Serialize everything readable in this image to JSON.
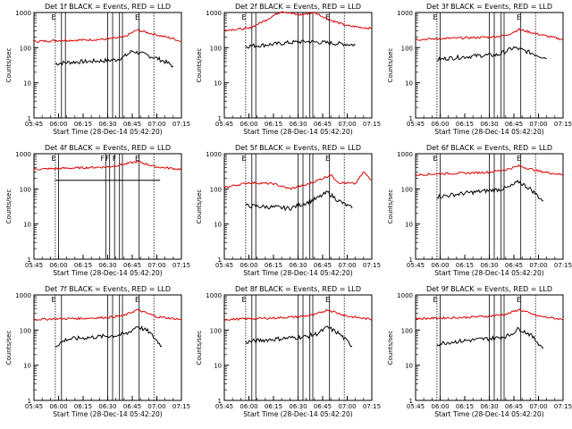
{
  "colors": {
    "events": "#000000",
    "lld": "#dd0000",
    "axis": "#000000",
    "background": "#ffffff"
  },
  "chart_data": [
    {
      "type": "line",
      "title": "Det 1f  BLACK = Events, RED = LLD",
      "ylabel": "Counts/sec",
      "xlabel": "Start Time (28-Dec-14 05:42:20)",
      "x_ticks": [
        "05:45",
        "06:00",
        "06:15",
        "06:30",
        "06:45",
        "07:00",
        "07:15"
      ],
      "y_ticks": [
        "1",
        "10",
        "100",
        "1000"
      ],
      "ylim": [
        1,
        1000
      ],
      "y_scale": "log",
      "flags": [
        "E",
        "E"
      ],
      "legend": "in title",
      "grid": false,
      "series": [
        {
          "name": "Events",
          "color": "#000000",
          "x": [
            "05:58",
            "06:05",
            "06:15",
            "06:25",
            "06:35",
            "06:40",
            "06:45",
            "06:52",
            "07:00",
            "07:05",
            "07:10"
          ],
          "values": [
            35,
            38,
            40,
            42,
            45,
            55,
            80,
            65,
            50,
            40,
            30
          ]
        },
        {
          "name": "LLD",
          "color": "#dd0000",
          "x": [
            "05:45",
            "06:00",
            "06:15",
            "06:30",
            "06:40",
            "06:48",
            "07:00",
            "07:10",
            "07:15"
          ],
          "values": [
            150,
            160,
            165,
            175,
            200,
            320,
            230,
            180,
            150
          ]
        }
      ]
    },
    {
      "type": "line",
      "title": "Det 2f  BLACK = Events, RED = LLD",
      "ylabel": "Counts/sec",
      "xlabel": "Start Time (28-Dec-14 05:42:20)",
      "x_ticks": [
        "05:45",
        "06:00",
        "06:15",
        "06:30",
        "06:45",
        "07:00",
        "07:15"
      ],
      "y_ticks": [
        "1",
        "10",
        "100",
        "1000"
      ],
      "ylim": [
        1,
        1000
      ],
      "y_scale": "log",
      "flags": [
        "E",
        "E"
      ],
      "legend": "in title",
      "grid": false,
      "series": [
        {
          "name": "Events",
          "color": "#000000",
          "x": [
            "05:58",
            "06:05",
            "06:15",
            "06:25",
            "06:35",
            "06:45",
            "06:55",
            "07:05"
          ],
          "values": [
            110,
            115,
            125,
            140,
            150,
            140,
            130,
            120
          ]
        },
        {
          "name": "LLD",
          "color": "#dd0000",
          "x": [
            "05:45",
            "06:00",
            "06:10",
            "06:20",
            "06:30",
            "06:40",
            "06:50",
            "07:00",
            "07:15"
          ],
          "values": [
            320,
            350,
            600,
            1100,
            850,
            1000,
            600,
            420,
            350
          ]
        }
      ]
    },
    {
      "type": "line",
      "title": "Det 3f  BLACK = Events, RED = LLD",
      "ylabel": "Counts/sec",
      "xlabel": "Start Time (28-Dec-14 05:42:20)",
      "x_ticks": [
        "05:45",
        "06:00",
        "06:15",
        "06:30",
        "06:45",
        "07:00",
        "07:15"
      ],
      "y_ticks": [
        "1",
        "10",
        "100",
        "1000"
      ],
      "ylim": [
        1,
        1000
      ],
      "y_scale": "log",
      "flags": [
        "E",
        "E"
      ],
      "legend": "in title",
      "grid": false,
      "series": [
        {
          "name": "Events",
          "color": "#000000",
          "x": [
            "05:58",
            "06:05",
            "06:15",
            "06:25",
            "06:35",
            "06:45",
            "06:52",
            "07:00",
            "07:05"
          ],
          "values": [
            45,
            50,
            55,
            60,
            62,
            100,
            80,
            60,
            50
          ]
        },
        {
          "name": "LLD",
          "color": "#dd0000",
          "x": [
            "05:45",
            "06:00",
            "06:15",
            "06:30",
            "06:40",
            "06:48",
            "07:00",
            "07:15"
          ],
          "values": [
            170,
            180,
            190,
            200,
            220,
            330,
            240,
            170
          ]
        }
      ]
    },
    {
      "type": "line",
      "title": "Det 4f  BLACK = Events, RED = LLD",
      "ylabel": "Counts/sec",
      "xlabel": "Start Time (28-Dec-14 05:42:20)",
      "x_ticks": [
        "05:45",
        "06:00",
        "06:15",
        "06:30",
        "06:45",
        "07:00",
        "07:15"
      ],
      "y_ticks": [
        "1",
        "10",
        "100",
        "1000"
      ],
      "ylim": [
        1,
        1000
      ],
      "y_scale": "log",
      "flags": [
        "E",
        "F",
        "F",
        "F",
        "E"
      ],
      "legend": "in title",
      "grid": false,
      "series": [
        {
          "name": "Events",
          "color": "#000000",
          "x": [
            "05:58",
            "06:15",
            "06:30",
            "06:45",
            "07:00",
            "07:02"
          ],
          "values": [
            175,
            175,
            175,
            175,
            175,
            175
          ]
        },
        {
          "name": "LLD",
          "color": "#dd0000",
          "x": [
            "05:45",
            "06:00",
            "06:15",
            "06:30",
            "06:40",
            "06:48",
            "07:00",
            "07:15"
          ],
          "values": [
            360,
            380,
            400,
            420,
            500,
            600,
            420,
            360
          ]
        }
      ]
    },
    {
      "type": "line",
      "title": "Det 5f  BLACK = Events, RED = LLD",
      "ylabel": "Counts/sec",
      "xlabel": "Start Time (28-Dec-14 05:42:20)",
      "x_ticks": [
        "05:45",
        "06:00",
        "06:15",
        "06:30",
        "06:45",
        "07:00",
        "07:15"
      ],
      "y_ticks": [
        "1",
        "10",
        "100",
        "1000"
      ],
      "ylim": [
        1,
        1000
      ],
      "y_scale": "log",
      "flags": [
        "E",
        "E"
      ],
      "legend": "in title",
      "grid": false,
      "series": [
        {
          "name": "Events",
          "color": "#000000",
          "x": [
            "05:58",
            "06:05",
            "06:15",
            "06:25",
            "06:35",
            "06:42",
            "06:48",
            "06:55",
            "07:03"
          ],
          "values": [
            33,
            32,
            30,
            28,
            40,
            55,
            80,
            45,
            28
          ]
        },
        {
          "name": "LLD",
          "color": "#dd0000",
          "x": [
            "05:45",
            "06:00",
            "06:15",
            "06:25",
            "06:35",
            "06:45",
            "06:50",
            "06:55",
            "07:05",
            "07:10",
            "07:15"
          ],
          "values": [
            110,
            150,
            140,
            100,
            130,
            200,
            250,
            150,
            140,
            300,
            180
          ]
        }
      ]
    },
    {
      "type": "line",
      "title": "Det 6f  BLACK = Events, RED = LLD",
      "ylabel": "Counts/sec",
      "xlabel": "Start Time (28-Dec-14 05:42:20)",
      "x_ticks": [
        "05:45",
        "06:00",
        "06:15",
        "06:30",
        "06:45",
        "07:00",
        "07:15"
      ],
      "y_ticks": [
        "1",
        "10",
        "100",
        "1000"
      ],
      "ylim": [
        1,
        1000
      ],
      "y_scale": "log",
      "flags": [
        "E",
        "E"
      ],
      "legend": "in title",
      "grid": false,
      "series": [
        {
          "name": "Events",
          "color": "#000000",
          "x": [
            "05:58",
            "06:05",
            "06:15",
            "06:25",
            "06:35",
            "06:42",
            "06:48",
            "06:55",
            "07:03"
          ],
          "values": [
            60,
            65,
            75,
            85,
            95,
            110,
            160,
            100,
            45
          ]
        },
        {
          "name": "LLD",
          "color": "#dd0000",
          "x": [
            "05:45",
            "06:00",
            "06:15",
            "06:30",
            "06:40",
            "06:48",
            "07:00",
            "07:15"
          ],
          "values": [
            250,
            270,
            280,
            300,
            350,
            450,
            320,
            250
          ]
        }
      ]
    },
    {
      "type": "line",
      "title": "Det 7f  BLACK = Events, RED = LLD",
      "ylabel": "Counts/sec",
      "xlabel": "Start Time (28-Dec-14 05:42:20)",
      "x_ticks": [
        "05:45",
        "06:00",
        "06:15",
        "06:30",
        "06:45",
        "07:00",
        "07:15"
      ],
      "y_ticks": [
        "1",
        "10",
        "100",
        "1000"
      ],
      "ylim": [
        1,
        1000
      ],
      "y_scale": "log",
      "flags": [
        "E",
        "E"
      ],
      "legend": "in title",
      "grid": false,
      "series": [
        {
          "name": "Events",
          "color": "#000000",
          "x": [
            "05:58",
            "06:05",
            "06:15",
            "06:25",
            "06:35",
            "06:42",
            "06:48",
            "06:55",
            "07:03"
          ],
          "values": [
            35,
            55,
            60,
            65,
            70,
            80,
            130,
            90,
            35
          ]
        },
        {
          "name": "LLD",
          "color": "#dd0000",
          "x": [
            "05:45",
            "06:00",
            "06:15",
            "06:30",
            "06:40",
            "06:48",
            "07:00",
            "07:15"
          ],
          "values": [
            200,
            210,
            215,
            230,
            260,
            380,
            240,
            200
          ]
        }
      ]
    },
    {
      "type": "line",
      "title": "Det 8f  BLACK = Events, RED = LLD",
      "ylabel": "Counts/sec",
      "xlabel": "Start Time (28-Dec-14 05:42:20)",
      "x_ticks": [
        "05:45",
        "06:00",
        "06:15",
        "06:30",
        "06:45",
        "07:00",
        "07:15"
      ],
      "y_ticks": [
        "1",
        "10",
        "100",
        "1000"
      ],
      "ylim": [
        1,
        1000
      ],
      "y_scale": "log",
      "flags": [
        "E",
        "E"
      ],
      "legend": "in title",
      "grid": false,
      "series": [
        {
          "name": "Events",
          "color": "#000000",
          "x": [
            "05:58",
            "06:05",
            "06:15",
            "06:25",
            "06:35",
            "06:42",
            "06:48",
            "06:55",
            "07:03"
          ],
          "values": [
            45,
            50,
            55,
            60,
            65,
            80,
            120,
            80,
            35
          ]
        },
        {
          "name": "LLD",
          "color": "#dd0000",
          "x": [
            "05:45",
            "06:00",
            "06:15",
            "06:30",
            "06:40",
            "06:48",
            "07:00",
            "07:15"
          ],
          "values": [
            200,
            210,
            220,
            240,
            270,
            380,
            250,
            200
          ]
        }
      ]
    },
    {
      "type": "line",
      "title": "Det 9f  BLACK = Events, RED = LLD",
      "ylabel": "Counts/sec",
      "xlabel": "Start Time (28-Dec-14 05:42:20)",
      "x_ticks": [
        "05:45",
        "06:00",
        "06:15",
        "06:30",
        "06:45",
        "07:00",
        "07:15"
      ],
      "y_ticks": [
        "1",
        "10",
        "100",
        "1000"
      ],
      "ylim": [
        1,
        1000
      ],
      "y_scale": "log",
      "flags": [
        "E",
        "E"
      ],
      "legend": "in title",
      "grid": false,
      "series": [
        {
          "name": "Events",
          "color": "#000000",
          "x": [
            "05:58",
            "06:05",
            "06:15",
            "06:25",
            "06:35",
            "06:42",
            "06:48",
            "06:55",
            "07:03"
          ],
          "values": [
            40,
            45,
            50,
            55,
            60,
            70,
            110,
            75,
            30
          ]
        },
        {
          "name": "LLD",
          "color": "#dd0000",
          "x": [
            "05:45",
            "06:00",
            "06:15",
            "06:30",
            "06:40",
            "06:48",
            "07:00",
            "07:15"
          ],
          "values": [
            210,
            220,
            230,
            250,
            280,
            380,
            250,
            200
          ]
        }
      ]
    }
  ]
}
